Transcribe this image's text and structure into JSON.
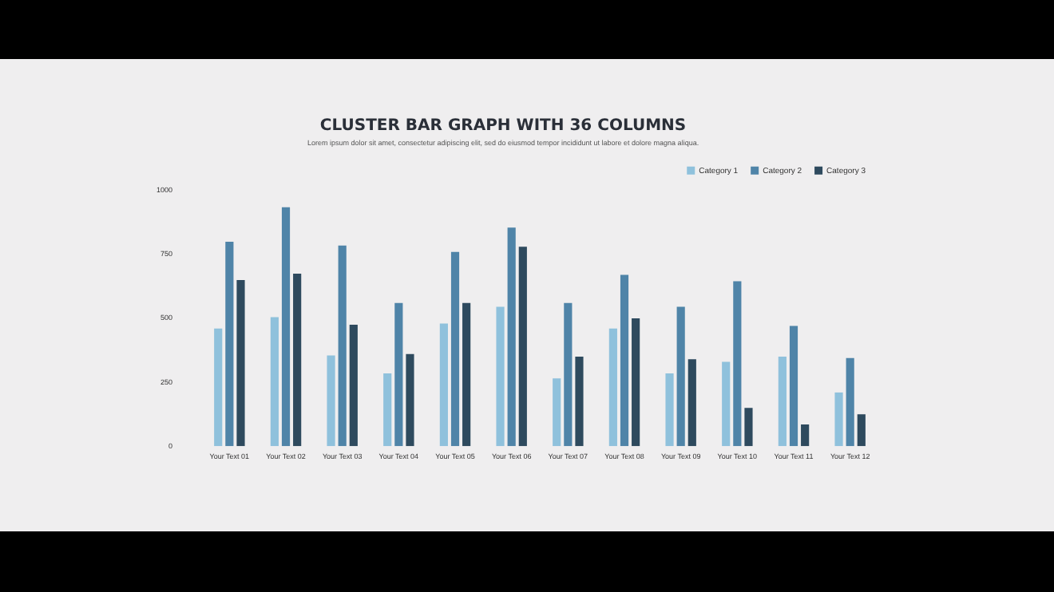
{
  "chart_data": {
    "type": "bar",
    "title": "CLUSTER BAR GRAPH WITH 36 COLUMNS",
    "subtitle": "Lorem ipsum dolor sit amet, consectetur adipiscing elit, sed do eiusmod tempor incididunt ut labore et dolore magna aliqua.",
    "categories": [
      "Your Text 01",
      "Your Text 02",
      "Your Text 03",
      "Your Text 04",
      "Your Text 05",
      "Your Text 06",
      "Your Text 07",
      "Your Text 08",
      "Your Text 09",
      "Your Text 10",
      "Your Text 11",
      "Your Text 12"
    ],
    "series": [
      {
        "name": "Category 1",
        "color": "#8fc1dc",
        "values": [
          460,
          505,
          355,
          285,
          480,
          545,
          265,
          460,
          285,
          330,
          350,
          210
        ]
      },
      {
        "name": "Category 2",
        "color": "#4f84a8",
        "values": [
          800,
          935,
          785,
          560,
          760,
          855,
          560,
          670,
          545,
          645,
          470,
          345
        ]
      },
      {
        "name": "Category 3",
        "color": "#2e4a5e",
        "values": [
          650,
          675,
          475,
          360,
          560,
          780,
          350,
          500,
          340,
          150,
          85,
          125
        ]
      }
    ],
    "ylim": [
      0,
      1000
    ],
    "yticks": [
      0,
      250,
      500,
      750,
      1000
    ],
    "grid": false,
    "legend": "top right"
  }
}
